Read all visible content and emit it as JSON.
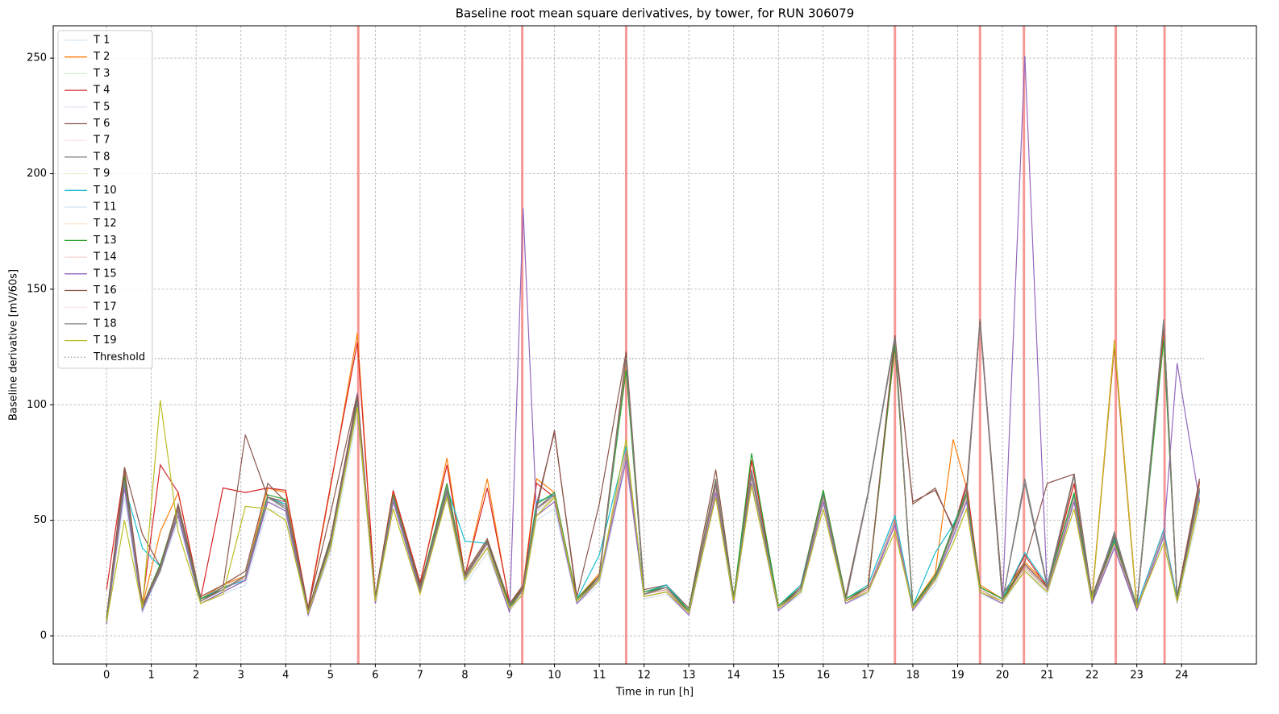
{
  "chart_data": {
    "type": "line",
    "title": "Baseline root mean square derivatives, by tower, for RUN 306079",
    "xlabel": "Time in run [h]",
    "ylabel": "Baseline derivative [mV/60s]",
    "xlim": [
      -1.19,
      25.67
    ],
    "ylim": [
      -12.2,
      264
    ],
    "xticks": [
      0,
      1,
      2,
      3,
      4,
      5,
      6,
      7,
      8,
      9,
      10,
      11,
      12,
      13,
      14,
      15,
      16,
      17,
      18,
      19,
      20,
      21,
      22,
      23,
      24
    ],
    "yticks": [
      0,
      50,
      100,
      150,
      200,
      250
    ],
    "grid": true,
    "legend": "upper left",
    "x": [
      0,
      0.4,
      0.8,
      1.2,
      1.6,
      2.1,
      2.6,
      3.1,
      3.6,
      4.0,
      4.5,
      5.0,
      5.6,
      6.0,
      6.4,
      7.0,
      7.6,
      8.0,
      8.5,
      9.0,
      9.3,
      9.6,
      10.0,
      10.5,
      11.0,
      11.6,
      12.0,
      12.5,
      13.0,
      13.6,
      14.0,
      14.4,
      15.0,
      15.5,
      16.0,
      16.5,
      17.0,
      17.6,
      18.0,
      18.5,
      18.9,
      19.2,
      19.5,
      20.0,
      20.5,
      21.0,
      21.6,
      22.0,
      22.5,
      23.0,
      23.6,
      23.9,
      24.4
    ],
    "series": [
      {
        "name": "T 1",
        "color": "#1f77b4",
        "alpha": 0.2,
        "values": [
          5,
          60,
          10,
          28,
          50,
          14,
          18,
          22,
          55,
          52,
          9,
          36,
          95,
          14,
          55,
          18,
          60,
          22,
          36,
          11,
          18,
          50,
          55,
          14,
          22,
          75,
          16,
          18,
          9,
          60,
          14,
          65,
          11,
          18,
          55,
          14,
          18,
          48,
          11,
          22,
          42,
          55,
          18,
          14,
          28,
          18,
          55,
          14,
          38,
          11,
          42,
          14,
          55
        ]
      },
      {
        "name": "T 2",
        "color": "#ff7f0e",
        "alpha": 1,
        "values": [
          7,
          70,
          13,
          45,
          62,
          16,
          22,
          26,
          64,
          62,
          11,
          64,
          131,
          16,
          62,
          22,
          77,
          26,
          68,
          13,
          22,
          68,
          62,
          16,
          27,
          118,
          19,
          22,
          11,
          68,
          16,
          76,
          13,
          22,
          63,
          16,
          22,
          125,
          13,
          27,
          85,
          64,
          22,
          16,
          32,
          22,
          66,
          16,
          128,
          13,
          130,
          16,
          66
        ]
      },
      {
        "name": "T 3",
        "color": "#2ca02c",
        "alpha": 0.2,
        "values": [
          6,
          65,
          11,
          29,
          52,
          14,
          19,
          24,
          58,
          55,
          10,
          38,
          98,
          14,
          58,
          19,
          62,
          24,
          38,
          11,
          19,
          52,
          58,
          14,
          24,
          78,
          17,
          19,
          10,
          62,
          14,
          68,
          11,
          19,
          58,
          14,
          19,
          50,
          11,
          24,
          44,
          58,
          19,
          14,
          29,
          19,
          58,
          14,
          40,
          11,
          44,
          14,
          58
        ]
      },
      {
        "name": "T 4",
        "color": "#d62728",
        "alpha": 1,
        "values": [
          20,
          72,
          14,
          74,
          62,
          16,
          64,
          62,
          64,
          63,
          12,
          65,
          127,
          17,
          63,
          23,
          74,
          26,
          64,
          14,
          21,
          66,
          60,
          16,
          26,
          120,
          18,
          21,
          11,
          67,
          16,
          76,
          12,
          21,
          62,
          16,
          21,
          126,
          12,
          26,
          46,
          66,
          21,
          16,
          35,
          21,
          66,
          16,
          125,
          12,
          133,
          16,
          67
        ]
      },
      {
        "name": "T 5",
        "color": "#9467bd",
        "alpha": 0.2,
        "values": [
          7,
          69,
          13,
          31,
          56,
          16,
          21,
          26,
          61,
          59,
          11,
          41,
          101,
          16,
          61,
          21,
          66,
          26,
          41,
          13,
          21,
          56,
          61,
          16,
          26,
          81,
          19,
          21,
          11,
          66,
          16,
          71,
          13,
          21,
          61,
          16,
          21,
          51,
          13,
          26,
          46,
          61,
          21,
          16,
          31,
          21,
          61,
          16,
          41,
          13,
          46,
          16,
          61
        ]
      },
      {
        "name": "T 6",
        "color": "#8c564b",
        "alpha": 1,
        "values": [
          8,
          73,
          44,
          30,
          57,
          17,
          22,
          28,
          66,
          58,
          12,
          53,
          105,
          17,
          61,
          22,
          60,
          27,
          42,
          14,
          22,
          57,
          88,
          17,
          57,
          123,
          20,
          22,
          12,
          72,
          17,
          70,
          13,
          22,
          63,
          17,
          62,
          128,
          58,
          63,
          47,
          64,
          137,
          18,
          32,
          66,
          70,
          17,
          44,
          13,
          136,
          17,
          68
        ]
      },
      {
        "name": "T 7",
        "color": "#e377c2",
        "alpha": 0.2,
        "values": [
          5,
          66,
          11,
          29,
          54,
          14,
          19,
          24,
          58,
          56,
          9,
          39,
          98,
          14,
          59,
          19,
          63,
          24,
          39,
          11,
          19,
          54,
          58,
          14,
          24,
          78,
          17,
          19,
          9,
          63,
          14,
          68,
          11,
          19,
          59,
          14,
          19,
          49,
          11,
          24,
          44,
          58,
          19,
          14,
          29,
          19,
          59,
          14,
          39,
          11,
          44,
          14,
          59
        ]
      },
      {
        "name": "T 8",
        "color": "#7f7f7f",
        "alpha": 1,
        "values": [
          6,
          66,
          12,
          28,
          54,
          15,
          20,
          26,
          60,
          55,
          10,
          40,
          102,
          15,
          60,
          20,
          62,
          25,
          40,
          12,
          20,
          55,
          62,
          15,
          26,
          121,
          18,
          22,
          10,
          68,
          15,
          72,
          12,
          20,
          62,
          15,
          62,
          130,
          12,
          26,
          47,
          62,
          137,
          15,
          68,
          22,
          70,
          15,
          45,
          12,
          137,
          15,
          64
        ]
      },
      {
        "name": "T 9",
        "color": "#bcbd22",
        "alpha": 0.2,
        "values": [
          6,
          67,
          12,
          29,
          55,
          15,
          20,
          25,
          59,
          57,
          10,
          40,
          99,
          15,
          59,
          20,
          64,
          25,
          40,
          12,
          20,
          55,
          59,
          15,
          25,
          79,
          18,
          20,
          10,
          64,
          15,
          69,
          12,
          20,
          59,
          15,
          20,
          50,
          12,
          25,
          45,
          59,
          20,
          15,
          30,
          20,
          59,
          15,
          40,
          12,
          45,
          15,
          59
        ]
      },
      {
        "name": "T 10",
        "color": "#17becf",
        "alpha": 1,
        "values": [
          5,
          65,
          38,
          30,
          56,
          16,
          21,
          24,
          60,
          57,
          11,
          42,
          101,
          16,
          60,
          21,
          64,
          41,
          40,
          13,
          21,
          58,
          61,
          16,
          35,
          82,
          19,
          22,
          11,
          66,
          16,
          71,
          13,
          22,
          62,
          16,
          22,
          52,
          13,
          36,
          48,
          61,
          21,
          16,
          36,
          22,
          61,
          16,
          42,
          13,
          46,
          16,
          62
        ]
      },
      {
        "name": "T 11",
        "color": "#1f77b4",
        "alpha": 0.2,
        "values": [
          6,
          66,
          12,
          30,
          54,
          15,
          20,
          25,
          59,
          57,
          10,
          40,
          99,
          15,
          59,
          20,
          64,
          25,
          40,
          12,
          20,
          54,
          59,
          15,
          25,
          79,
          18,
          20,
          10,
          64,
          15,
          69,
          12,
          20,
          59,
          15,
          20,
          49,
          12,
          25,
          45,
          59,
          20,
          15,
          30,
          20,
          59,
          15,
          39,
          12,
          44,
          15,
          59
        ]
      },
      {
        "name": "T 12",
        "color": "#ff7f0e",
        "alpha": 0.2,
        "values": [
          6,
          67,
          13,
          30,
          55,
          15,
          21,
          25,
          60,
          58,
          11,
          40,
          100,
          15,
          60,
          20,
          65,
          25,
          40,
          12,
          20,
          55,
          60,
          15,
          25,
          80,
          18,
          20,
          10,
          65,
          15,
          70,
          12,
          20,
          60,
          15,
          20,
          50,
          12,
          25,
          45,
          60,
          20,
          15,
          30,
          20,
          60,
          15,
          40,
          12,
          45,
          15,
          60
        ]
      },
      {
        "name": "T 13",
        "color": "#2ca02c",
        "alpha": 1,
        "values": [
          7,
          69,
          13,
          31,
          56,
          16,
          20,
          26,
          61,
          59,
          11,
          41,
          103,
          16,
          61,
          21,
          66,
          26,
          41,
          13,
          21,
          57,
          62,
          16,
          26,
          115,
          19,
          21,
          11,
          67,
          16,
          79,
          13,
          21,
          63,
          16,
          21,
          126,
          13,
          26,
          47,
          62,
          21,
          16,
          31,
          21,
          62,
          16,
          41,
          13,
          128,
          16,
          63
        ]
      },
      {
        "name": "T 14",
        "color": "#d62728",
        "alpha": 0.2,
        "values": [
          6,
          68,
          12,
          30,
          55,
          15,
          20,
          25,
          60,
          58,
          10,
          40,
          100,
          15,
          60,
          20,
          65,
          25,
          40,
          12,
          20,
          55,
          60,
          15,
          25,
          80,
          18,
          20,
          10,
          65,
          15,
          70,
          12,
          20,
          60,
          15,
          20,
          50,
          12,
          25,
          45,
          60,
          20,
          15,
          30,
          20,
          60,
          15,
          40,
          12,
          45,
          15,
          60
        ]
      },
      {
        "name": "T 15",
        "color": "#9467bd",
        "alpha": 1,
        "values": [
          5,
          64,
          11,
          29,
          52,
          14,
          19,
          24,
          58,
          54,
          9,
          38,
          105,
          14,
          58,
          19,
          60,
          24,
          38,
          10,
          185,
          52,
          58,
          14,
          24,
          76,
          17,
          19,
          9,
          62,
          14,
          66,
          11,
          19,
          58,
          14,
          19,
          48,
          11,
          24,
          43,
          58,
          19,
          14,
          251,
          19,
          58,
          14,
          38,
          11,
          43,
          118,
          58
        ]
      },
      {
        "name": "T 16",
        "color": "#8c564b",
        "alpha": 1,
        "values": [
          6,
          72,
          13,
          30,
          56,
          15,
          21,
          87,
          60,
          58,
          11,
          42,
          104,
          16,
          60,
          21,
          63,
          26,
          41,
          12,
          21,
          55,
          89,
          15,
          26,
          122,
          18,
          21,
          10,
          66,
          15,
          70,
          12,
          21,
          61,
          15,
          21,
          130,
          57,
          64,
          46,
          61,
          136,
          15,
          31,
          21,
          70,
          15,
          43,
          12,
          135,
          15,
          67
        ]
      },
      {
        "name": "T 17",
        "color": "#e377c2",
        "alpha": 0.2,
        "values": [
          6,
          67,
          12,
          30,
          55,
          15,
          20,
          25,
          60,
          58,
          10,
          40,
          99,
          15,
          60,
          20,
          64,
          25,
          40,
          12,
          20,
          55,
          60,
          15,
          25,
          80,
          18,
          20,
          10,
          64,
          15,
          70,
          12,
          20,
          60,
          15,
          20,
          50,
          12,
          25,
          45,
          60,
          20,
          15,
          30,
          20,
          60,
          15,
          40,
          12,
          45,
          15,
          60
        ]
      },
      {
        "name": "T 18",
        "color": "#7f7f7f",
        "alpha": 1,
        "values": [
          6,
          67,
          12,
          29,
          54,
          15,
          20,
          26,
          60,
          56,
          10,
          40,
          101,
          15,
          60,
          20,
          63,
          25,
          40,
          12,
          20,
          55,
          61,
          15,
          25,
          120,
          18,
          21,
          10,
          67,
          15,
          71,
          12,
          20,
          61,
          15,
          61,
          129,
          12,
          25,
          46,
          61,
          135,
          15,
          66,
          21,
          69,
          15,
          44,
          12,
          136,
          15,
          63
        ]
      },
      {
        "name": "T 19",
        "color": "#bcbd22",
        "alpha": 1,
        "values": [
          6,
          50,
          12,
          102,
          45,
          14,
          18,
          56,
          55,
          50,
          10,
          38,
          99,
          15,
          55,
          18,
          60,
          24,
          38,
          12,
          18,
          52,
          60,
          15,
          24,
          85,
          17,
          19,
          10,
          60,
          15,
          65,
          12,
          19,
          55,
          15,
          19,
          45,
          12,
          24,
          40,
          55,
          19,
          15,
          28,
          19,
          55,
          15,
          127,
          12,
          40,
          15,
          58
        ]
      }
    ],
    "threshold": {
      "label": "Threshold",
      "value": 120,
      "color": "#a0a0a0",
      "xrange": [
        0,
        24.5
      ]
    },
    "vlines": {
      "color": "#f4807c",
      "x": [
        5.62,
        9.28,
        11.6,
        17.6,
        19.5,
        20.48,
        22.53,
        23.62
      ]
    }
  }
}
